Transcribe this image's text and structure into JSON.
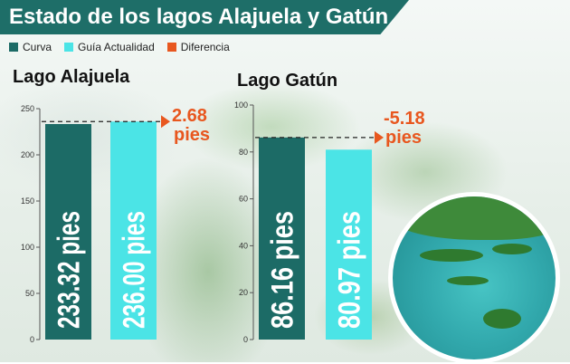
{
  "header": {
    "title": "Estado de los lagos Alajuela y Gatún"
  },
  "legend": [
    {
      "label": "Curva",
      "color": "#1c6b66"
    },
    {
      "label": "Guía Actualidad",
      "color": "#4be4e6"
    },
    {
      "label": "Diferencia",
      "color": "#e8571f"
    }
  ],
  "chart_data": [
    {
      "type": "bar",
      "title": "Lago Alajuela",
      "categories": [
        "Curva",
        "Guía Actualidad"
      ],
      "values": [
        233.32,
        236.0
      ],
      "value_labels": [
        "233.32 pies",
        "236.00 pies"
      ],
      "ylim": [
        0,
        250
      ],
      "yticks": [
        0,
        50,
        100,
        150,
        200,
        250
      ],
      "reference_line": 236.0,
      "difference": {
        "value": "2.68",
        "unit": "pies"
      },
      "colors": [
        "#1c6b66",
        "#4be4e6"
      ],
      "grid": false
    },
    {
      "type": "bar",
      "title": "Lago Gatún",
      "categories": [
        "Curva",
        "Guía Actualidad"
      ],
      "values": [
        86.16,
        80.97
      ],
      "value_labels": [
        "86.16 pies",
        "80.97 pies"
      ],
      "ylim": [
        0,
        100
      ],
      "yticks": [
        0,
        20,
        40,
        60,
        80,
        100
      ],
      "reference_line": 86.16,
      "difference": {
        "value": "-5.18",
        "unit": "pies"
      },
      "colors": [
        "#1c6b66",
        "#4be4e6"
      ],
      "grid": false
    }
  ]
}
